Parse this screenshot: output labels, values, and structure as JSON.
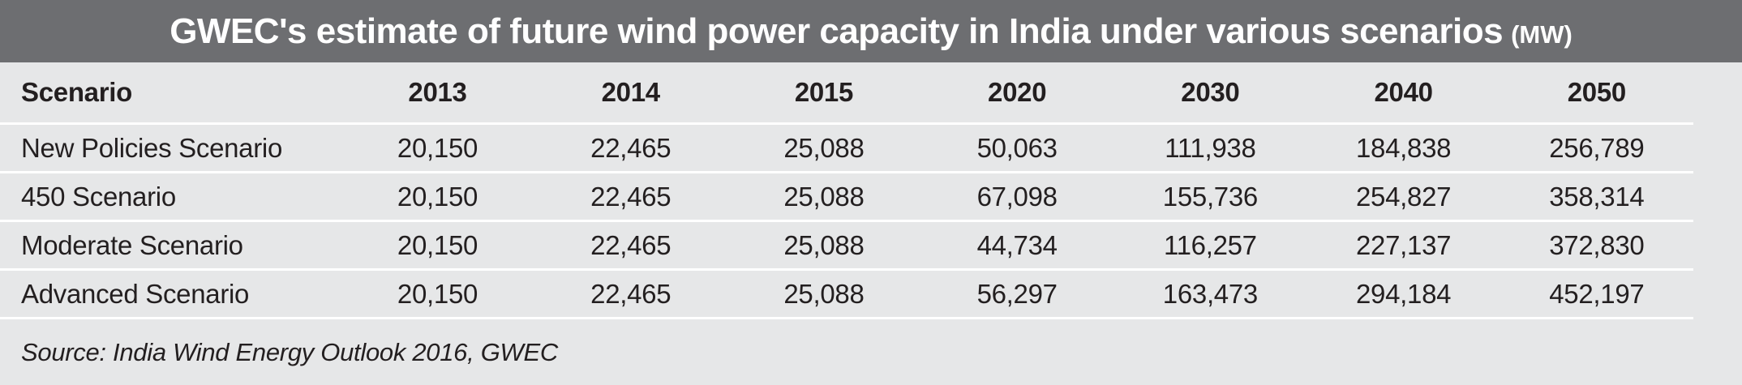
{
  "title": {
    "main": "GWEC's estimate of future wind power capacity in India under various scenarios",
    "unit": "(MW)"
  },
  "source": "Source: India Wind Energy Outlook 2016, GWEC",
  "colors": {
    "title_bar": "#6d6e71",
    "bottom_bar": "#6d6e71",
    "background": "#e6e7e8",
    "separator": "#ffffff",
    "text": "#231f20",
    "title_text": "#ffffff"
  },
  "chart_data": {
    "type": "table",
    "title": "GWEC's estimate of future wind power capacity in India under various scenarios (MW)",
    "unit": "MW",
    "columns": [
      "Scenario",
      "2013",
      "2014",
      "2015",
      "2020",
      "2030",
      "2040",
      "2050"
    ],
    "rows": [
      {
        "label": "New Policies Scenario",
        "values": [
          "20,150",
          "22,465",
          "25,088",
          "50,063",
          "111,938",
          "184,838",
          "256,789"
        ]
      },
      {
        "label": "450 Scenario",
        "values": [
          "20,150",
          "22,465",
          "25,088",
          "67,098",
          "155,736",
          "254,827",
          "358,314"
        ]
      },
      {
        "label": "Moderate Scenario",
        "values": [
          "20,150",
          "22,465",
          "25,088",
          "44,734",
          "116,257",
          "227,137",
          "372,830"
        ]
      },
      {
        "label": "Advanced Scenario",
        "values": [
          "20,150",
          "22,465",
          "25,088",
          "56,297",
          "163,473",
          "294,184",
          "452,197"
        ]
      }
    ],
    "source": "Source: India Wind Energy Outlook 2016, GWEC"
  }
}
